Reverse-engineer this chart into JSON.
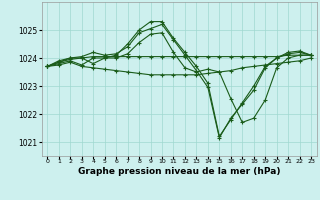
{
  "title": "Graphe pression niveau de la mer (hPa)",
  "bg_color": "#cdf0ee",
  "grid_color": "#a0d8d0",
  "line_color": "#1a5c1a",
  "xlim": [
    -0.5,
    23.5
  ],
  "ylim": [
    1020.5,
    1026.0
  ],
  "yticks": [
    1021,
    1022,
    1023,
    1024,
    1025
  ],
  "xticks": [
    0,
    1,
    2,
    3,
    4,
    5,
    6,
    7,
    8,
    9,
    10,
    11,
    12,
    13,
    14,
    15,
    16,
    17,
    18,
    19,
    20,
    21,
    22,
    23
  ],
  "lines": [
    [
      1023.7,
      1023.85,
      1023.95,
      1024.0,
      1024.05,
      1024.05,
      1024.05,
      1024.05,
      1024.05,
      1024.05,
      1024.05,
      1024.05,
      1024.05,
      1024.05,
      1024.05,
      1024.05,
      1024.05,
      1024.05,
      1024.05,
      1024.05,
      1024.05,
      1024.1,
      1024.1,
      1024.1
    ],
    [
      1023.7,
      1023.9,
      1024.0,
      1024.0,
      1023.8,
      1024.0,
      1024.1,
      1024.5,
      1025.0,
      1025.3,
      1025.3,
      1024.7,
      1024.2,
      1023.7,
      1023.1,
      1021.2,
      1021.8,
      1022.4,
      1023.0,
      1023.7,
      1024.0,
      1024.2,
      1024.25,
      1024.1
    ],
    [
      1023.7,
      1023.85,
      1024.0,
      1024.05,
      1024.2,
      1024.1,
      1024.15,
      1024.4,
      1024.9,
      1025.05,
      1025.2,
      1024.65,
      1024.1,
      1023.55,
      1022.95,
      1021.15,
      1021.85,
      1022.35,
      1022.85,
      1023.65,
      1024.0,
      1024.15,
      1024.2,
      1024.1
    ],
    [
      1023.7,
      1023.8,
      1023.9,
      1023.75,
      1024.0,
      1024.0,
      1024.0,
      1024.15,
      1024.55,
      1024.85,
      1024.9,
      1024.2,
      1023.65,
      1023.5,
      1023.6,
      1023.5,
      1022.55,
      1021.7,
      1021.85,
      1022.5,
      1023.65,
      1024.0,
      1024.1,
      1024.1
    ],
    [
      1023.7,
      1023.75,
      1023.85,
      1023.7,
      1023.65,
      1023.6,
      1023.55,
      1023.5,
      1023.45,
      1023.4,
      1023.4,
      1023.4,
      1023.4,
      1023.4,
      1023.45,
      1023.5,
      1023.55,
      1023.65,
      1023.7,
      1023.75,
      1023.8,
      1023.85,
      1023.9,
      1024.0
    ]
  ]
}
